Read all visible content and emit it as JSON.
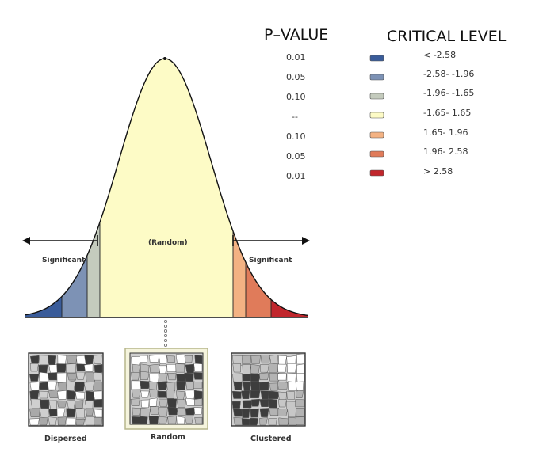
{
  "headers": {
    "p_value": "P–VALUE",
    "critical_level": "CRITICAL LEVEL"
  },
  "p_values": [
    "0.01",
    "0.05",
    "0.10",
    "--",
    "0.10",
    "0.05",
    "0.01"
  ],
  "legend": [
    {
      "label": "< -2.58",
      "color": "#3a5c9a"
    },
    {
      "label": "-2.58- -1.96",
      "color": "#7d92b5"
    },
    {
      "label": "-1.96- -1.65",
      "color": "#c4cbbd"
    },
    {
      "label": "-1.65- 1.65",
      "color": "#fdfbc6"
    },
    {
      "label": "1.65- 1.96",
      "color": "#f3b283"
    },
    {
      "label": "1.96- 2.58",
      "color": "#e07b5a"
    },
    {
      "label": "> 2.58",
      "color": "#c1262c"
    }
  ],
  "curve": {
    "center_label": "(Random)",
    "left_label": "Significant",
    "right_label": "Significant"
  },
  "maps": [
    {
      "caption": "Dispersed",
      "pattern": "dispersed"
    },
    {
      "caption": "Random",
      "pattern": "random"
    },
    {
      "caption": "Clustered",
      "pattern": "clustered"
    }
  ]
}
